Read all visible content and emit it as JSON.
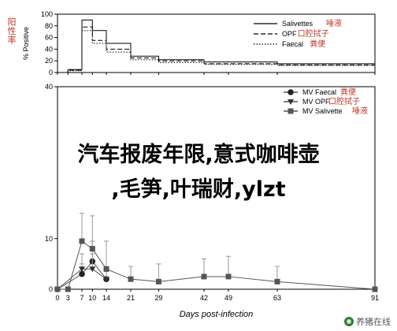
{
  "chart_data": [
    {
      "type": "line",
      "panel": "top",
      "ylabel": "% Positive",
      "ylabel_cn": "阳性率",
      "ylim": [
        0,
        100
      ],
      "yticks": [
        0,
        20,
        40,
        60,
        80,
        100
      ],
      "xlim": [
        0,
        91
      ],
      "xticks": [
        0,
        3,
        7,
        10,
        14,
        21,
        29,
        42,
        49,
        63,
        91
      ],
      "step_style": true,
      "legend": [
        {
          "name": "Salivettes",
          "cn": "唾液",
          "style": "solid"
        },
        {
          "name": "OPF",
          "cn": "口腔拭子",
          "style": "dashed"
        },
        {
          "name": "Faecal",
          "cn": "粪便",
          "style": "dotted"
        }
      ],
      "series": [
        {
          "name": "Salivettes",
          "style": "solid",
          "x": [
            0,
            3,
            7,
            10,
            14,
            21,
            29,
            42,
            63,
            91
          ],
          "y": [
            0,
            5,
            90,
            72,
            50,
            28,
            22,
            18,
            15,
            0
          ]
        },
        {
          "name": "OPF",
          "style": "dashed",
          "x": [
            0,
            3,
            7,
            10,
            14,
            21,
            29,
            42,
            63,
            91
          ],
          "y": [
            0,
            4,
            78,
            55,
            40,
            25,
            20,
            15,
            13,
            0
          ]
        },
        {
          "name": "Faecal",
          "style": "dotted",
          "x": [
            0,
            3,
            7,
            10,
            14,
            21,
            29,
            42,
            63,
            91
          ],
          "y": [
            0,
            3,
            72,
            50,
            35,
            22,
            17,
            14,
            12,
            0
          ]
        }
      ]
    },
    {
      "type": "scatter",
      "panel": "bottom",
      "xlabel": "Days post-infection",
      "xlim": [
        0,
        91
      ],
      "xticks": [
        0,
        3,
        7,
        10,
        14,
        21,
        29,
        42,
        49,
        63,
        91
      ],
      "ylim": [
        0,
        40
      ],
      "yticks": [
        0,
        10,
        40
      ],
      "legend": [
        {
          "name": "MV Faecal",
          "cn": "粪便",
          "marker": "circle"
        },
        {
          "name": "MV OPF",
          "cn": "口腔拭子",
          "marker": "triangle"
        },
        {
          "name": "MV Salivette",
          "cn": "唾液",
          "marker": "square"
        }
      ],
      "series": [
        {
          "name": "MV Faecal",
          "marker": "circle",
          "x": [
            0,
            7,
            10,
            14
          ],
          "y": [
            0,
            3,
            5.5,
            2
          ],
          "err": [
            0,
            2,
            4,
            1.5
          ]
        },
        {
          "name": "MV OPF",
          "marker": "triangle",
          "x": [
            0,
            7,
            10,
            14
          ],
          "y": [
            0,
            4,
            4,
            2
          ],
          "err": [
            0,
            3,
            3,
            2
          ]
        },
        {
          "name": "MV Salivette",
          "marker": "square",
          "x": [
            0,
            3,
            7,
            10,
            14,
            21,
            29,
            42,
            49,
            63,
            91
          ],
          "y": [
            0,
            0,
            9.5,
            8,
            4,
            2,
            1.5,
            2.5,
            2.5,
            1.5,
            0
          ],
          "err": [
            0,
            0,
            5.5,
            6.5,
            5.5,
            2.5,
            3.5,
            3.5,
            4,
            3,
            0
          ]
        }
      ]
    }
  ],
  "overlay": {
    "line1": "汽车报废年限,意式咖啡壶",
    "line2": ",毛笋,叶瑞财,ylzt"
  },
  "watermark": "养猪在线"
}
